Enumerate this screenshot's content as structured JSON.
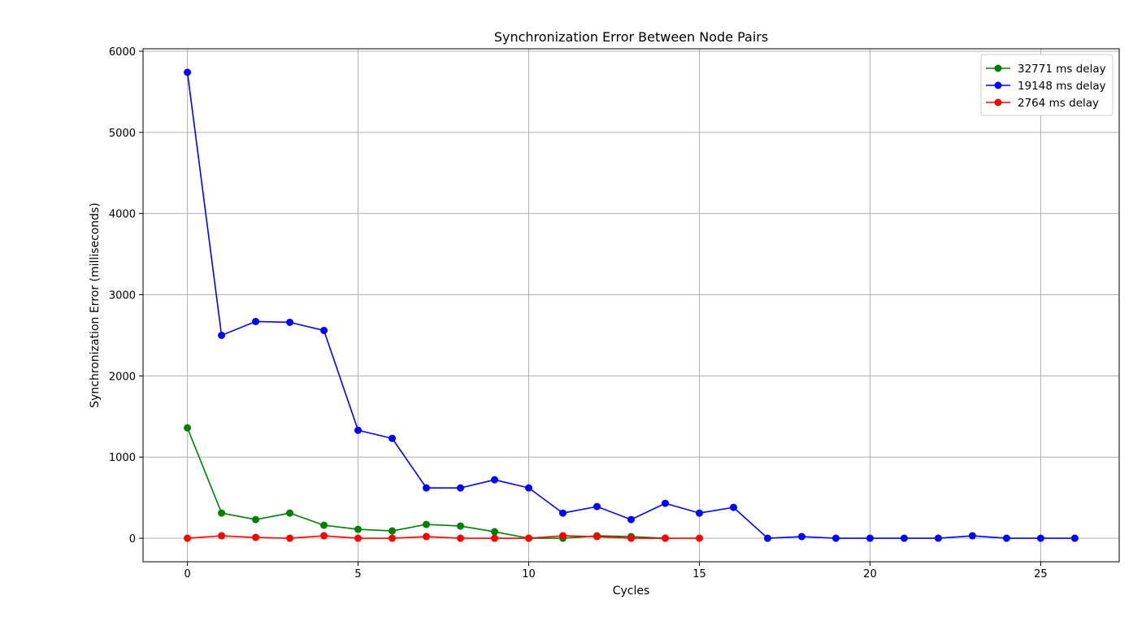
{
  "chart_data": {
    "type": "line",
    "title": "Synchronization Error Between Node Pairs",
    "xlabel": "Cycles",
    "ylabel": "Synchronization Error (milliseconds)",
    "xlim": [
      -1.3,
      27.3
    ],
    "ylim": [
      -290,
      6030
    ],
    "xticks": [
      0,
      5,
      10,
      15,
      20,
      25
    ],
    "yticks": [
      0,
      1000,
      2000,
      3000,
      4000,
      5000,
      6000
    ],
    "grid": true,
    "legend_position": "top-right",
    "series": [
      {
        "name": "32771 ms delay",
        "color": "#008000",
        "x": [
          0,
          1,
          2,
          3,
          4,
          5,
          6,
          7,
          8,
          9,
          10,
          11,
          12,
          13,
          14
        ],
        "y": [
          1360,
          310,
          230,
          310,
          160,
          110,
          90,
          170,
          150,
          80,
          0,
          0,
          30,
          20,
          0
        ]
      },
      {
        "name": "19148 ms delay",
        "color": "#0000ff",
        "x": [
          0,
          1,
          2,
          3,
          4,
          5,
          6,
          7,
          8,
          9,
          10,
          11,
          12,
          13,
          14,
          15,
          16,
          17,
          18,
          19,
          20,
          21,
          22,
          23,
          24,
          25,
          26
        ],
        "y": [
          5740,
          2500,
          2670,
          2660,
          2560,
          1330,
          1230,
          620,
          620,
          720,
          620,
          310,
          390,
          230,
          430,
          310,
          380,
          0,
          20,
          0,
          0,
          0,
          0,
          30,
          0,
          0,
          0
        ]
      },
      {
        "name": "2764 ms delay",
        "color": "#ff0000",
        "x": [
          0,
          1,
          2,
          3,
          4,
          5,
          6,
          7,
          8,
          9,
          10,
          11,
          12,
          13,
          14,
          15
        ],
        "y": [
          0,
          30,
          10,
          0,
          30,
          0,
          0,
          20,
          0,
          0,
          0,
          30,
          20,
          0,
          0,
          0
        ]
      }
    ]
  }
}
